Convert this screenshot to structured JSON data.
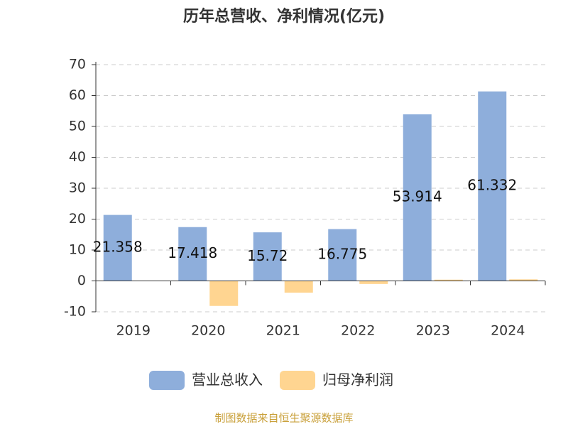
{
  "chart_data": {
    "type": "bar",
    "title": "历年总营收、净利情况(亿元)",
    "categories": [
      "2019",
      "2020",
      "2021",
      "2022",
      "2023",
      "2024"
    ],
    "series": [
      {
        "name": "营业总收入",
        "color": "#8eaedb",
        "values": [
          21.358,
          17.418,
          15.72,
          16.775,
          53.914,
          61.332
        ],
        "show_labels": true
      },
      {
        "name": "归母净利润",
        "color": "#ffd591",
        "values": [
          0,
          -8.1,
          -3.8,
          -1.0,
          0.4,
          0.5
        ],
        "show_labels": false
      }
    ],
    "ylim": [
      -10,
      70
    ],
    "yticks": [
      -10,
      0,
      10,
      20,
      30,
      40,
      50,
      60,
      70
    ],
    "grid": true,
    "legend": "bottom",
    "source": "制图数据来自恒生聚源数据库"
  }
}
